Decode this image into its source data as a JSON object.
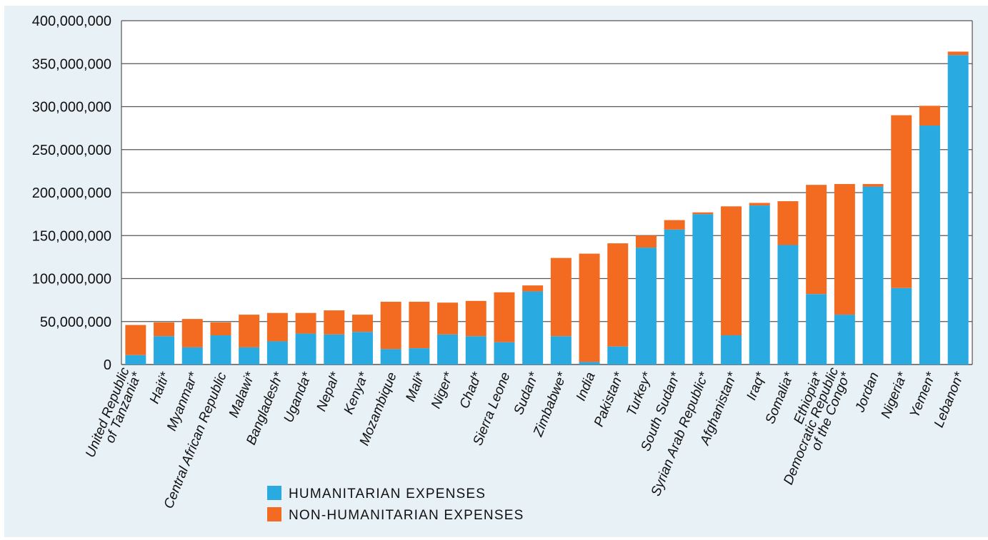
{
  "chart_data": {
    "type": "bar",
    "stacked": true,
    "categories": [
      "United Republic of Tanzania*",
      "Haiti*",
      "Myanmar*",
      "Central African Republic",
      "Malawi*",
      "Bangladesh*",
      "Uganda*",
      "Nepal*",
      "Kenya*",
      "Mozambique",
      "Mali*",
      "Niger*",
      "Chad*",
      "Sierra Leone",
      "Sudan*",
      "Zimbabwe*",
      "India",
      "Pakistan*",
      "Turkey*",
      "South Sudan*",
      "Syrian Arab Republic*",
      "Afghanistan*",
      "Iraq*",
      "Somalia*",
      "Ethiopia*",
      "Democratic Republic of the Congo*",
      "Jordan",
      "Nigeria*",
      "Yemen*",
      "Lebanon*"
    ],
    "category_lines": [
      [
        "United Republic",
        "of Tanzania*"
      ],
      [
        "Haiti*"
      ],
      [
        "Myanmar*"
      ],
      [
        "Central African Republic"
      ],
      [
        "Malawi*"
      ],
      [
        "Bangladesh*"
      ],
      [
        "Uganda*"
      ],
      [
        "Nepal*"
      ],
      [
        "Kenya*"
      ],
      [
        "Mozambique"
      ],
      [
        "Mali*"
      ],
      [
        "Niger*"
      ],
      [
        "Chad*"
      ],
      [
        "Sierra Leone"
      ],
      [
        "Sudan*"
      ],
      [
        "Zimbabwe*"
      ],
      [
        "India"
      ],
      [
        "Pakistan*"
      ],
      [
        "Turkey*"
      ],
      [
        "South Sudan*"
      ],
      [
        "Syrian Arab Republic*"
      ],
      [
        "Afghanistan*"
      ],
      [
        "Iraq*"
      ],
      [
        "Somalia*"
      ],
      [
        "Ethiopia*"
      ],
      [
        "Democratic Republic",
        "of the Congo*"
      ],
      [
        "Jordan"
      ],
      [
        "Nigeria*"
      ],
      [
        "Yemen*"
      ],
      [
        "Lebanon*"
      ]
    ],
    "series": [
      {
        "name": "HUMANITARIAN EXPENSES",
        "color": "#29abe2",
        "values": [
          11000000,
          33000000,
          20000000,
          34000000,
          20000000,
          27000000,
          36000000,
          35000000,
          38000000,
          18000000,
          19000000,
          35000000,
          33000000,
          26000000,
          85000000,
          33000000,
          3000000,
          21000000,
          136000000,
          157000000,
          175000000,
          34000000,
          185000000,
          139000000,
          82000000,
          58000000,
          207000000,
          89000000,
          278000000,
          360000000
        ]
      },
      {
        "name": "NON-HUMANITARIAN EXPENSES",
        "color": "#f26b21",
        "values": [
          35000000,
          16000000,
          33000000,
          15000000,
          38000000,
          33000000,
          24000000,
          28000000,
          20000000,
          55000000,
          54000000,
          37000000,
          41000000,
          58000000,
          7000000,
          91000000,
          126000000,
          120000000,
          14000000,
          11000000,
          2000000,
          150000000,
          3000000,
          51000000,
          127000000,
          152000000,
          3000000,
          201000000,
          23000000,
          4000000
        ]
      }
    ],
    "y_ticks": [
      "0",
      "50,000,000",
      "100,000,000",
      "150,000,000",
      "200,000,000",
      "250,000,000",
      "300,000,000",
      "350,000,000",
      "400,000,000"
    ],
    "ylim": [
      0,
      400000000
    ],
    "y_tick_step": 50000000,
    "grid": true,
    "legend_position": "bottom-center",
    "colors": {
      "background": "#e8f1f6",
      "plot": "#ffffff",
      "grid": "#555555"
    }
  }
}
